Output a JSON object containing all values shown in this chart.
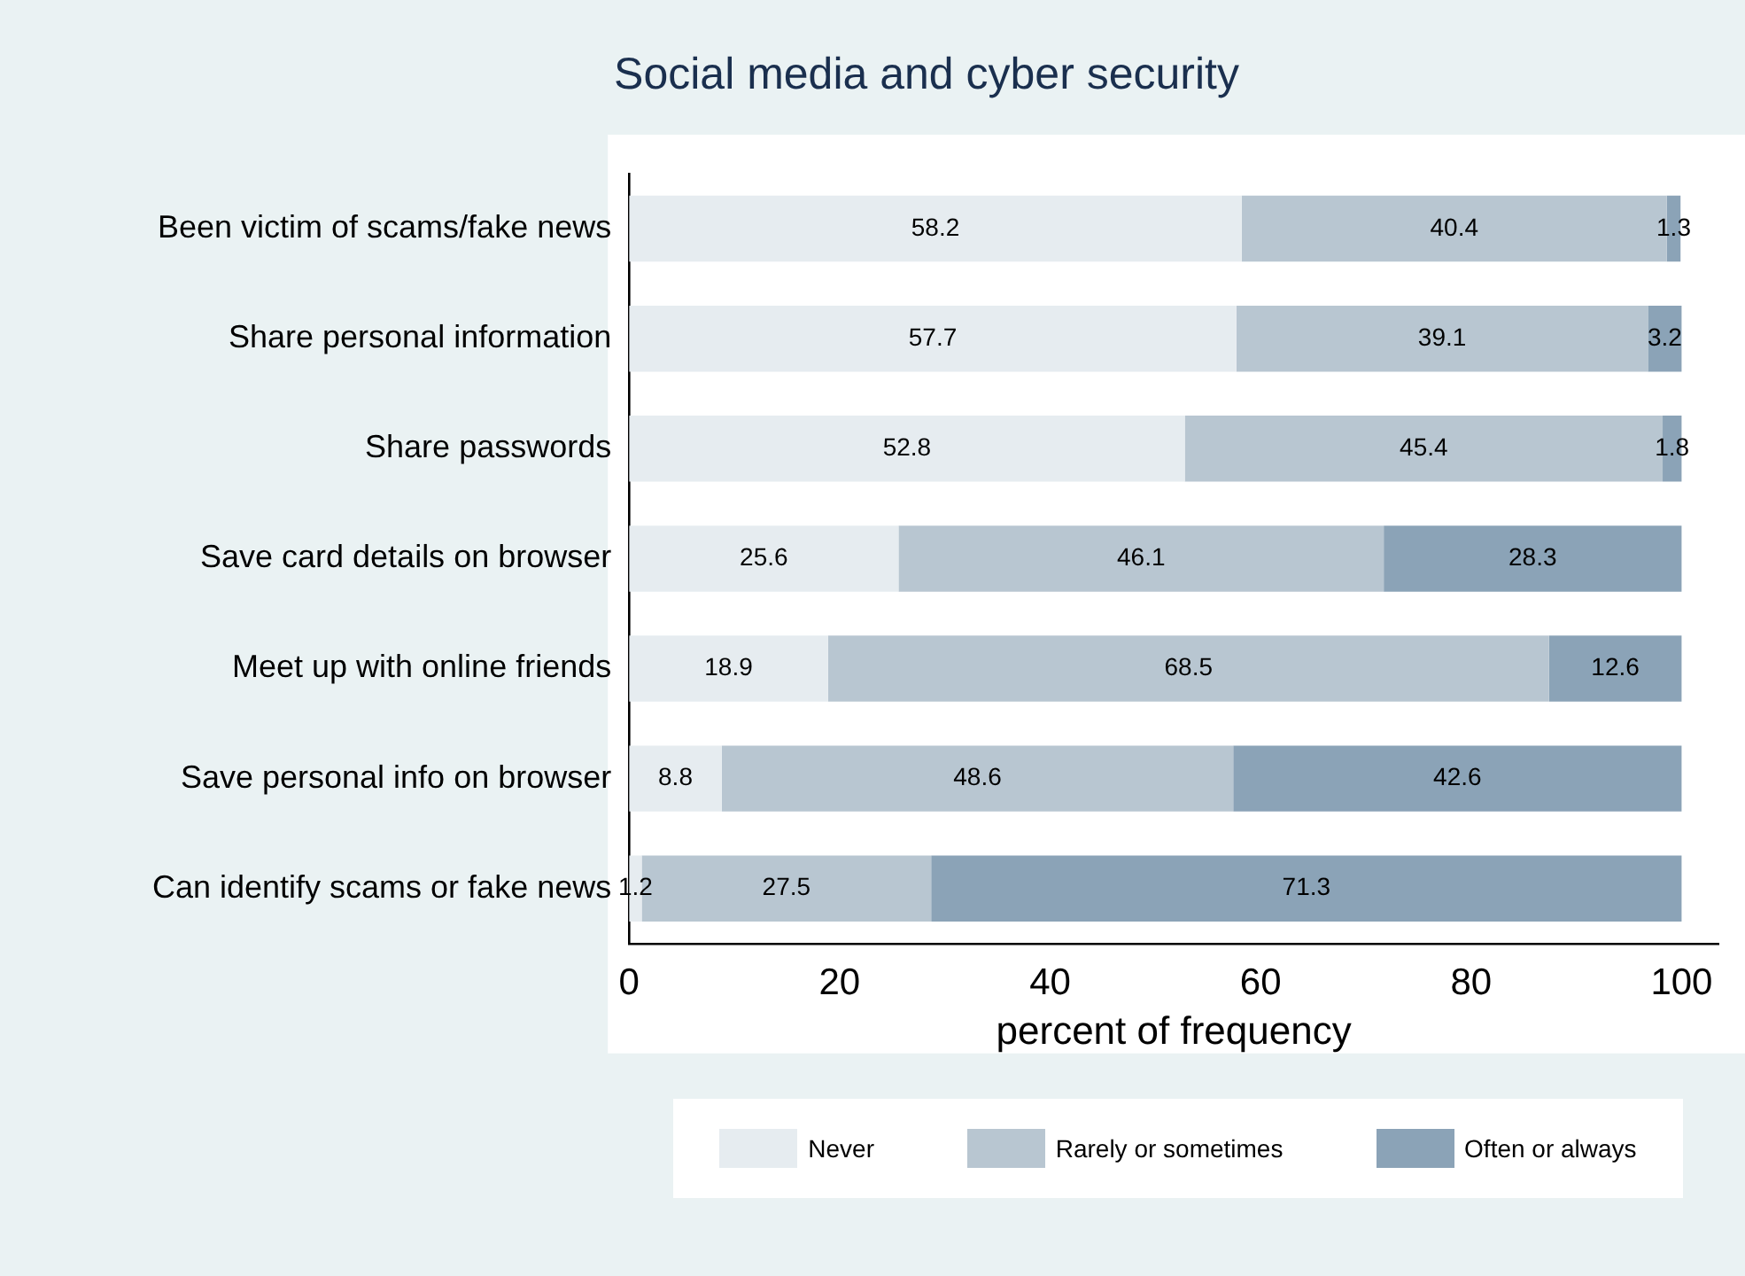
{
  "chart_data": {
    "type": "bar",
    "orientation": "horizontal",
    "stacked": true,
    "title": "Social media and cyber security",
    "xlabel": "percent of frequency",
    "categories": [
      "Been victim of scams/fake news",
      "Share personal information",
      "Share passwords",
      "Save card details on browser",
      "Meet up with online friends",
      "Save personal info on browser",
      "Can identify scams or fake news"
    ],
    "series": [
      {
        "name": "Never",
        "color": "#e6ecf0",
        "values": [
          58.2,
          57.7,
          52.8,
          25.6,
          18.9,
          8.8,
          1.2
        ]
      },
      {
        "name": "Rarely or sometimes",
        "color": "#b8c6d1",
        "values": [
          40.4,
          39.1,
          45.4,
          46.1,
          68.5,
          48.6,
          27.5
        ]
      },
      {
        "name": "Often or always",
        "color": "#8ba3b7",
        "values": [
          1.3,
          3.2,
          1.8,
          28.3,
          12.6,
          42.6,
          71.3
        ]
      }
    ],
    "xlim": [
      0,
      103.5
    ],
    "xticks": [
      0,
      20,
      40,
      60,
      80,
      100
    ],
    "grid": false,
    "legend": "bottom",
    "data_labels": true
  }
}
